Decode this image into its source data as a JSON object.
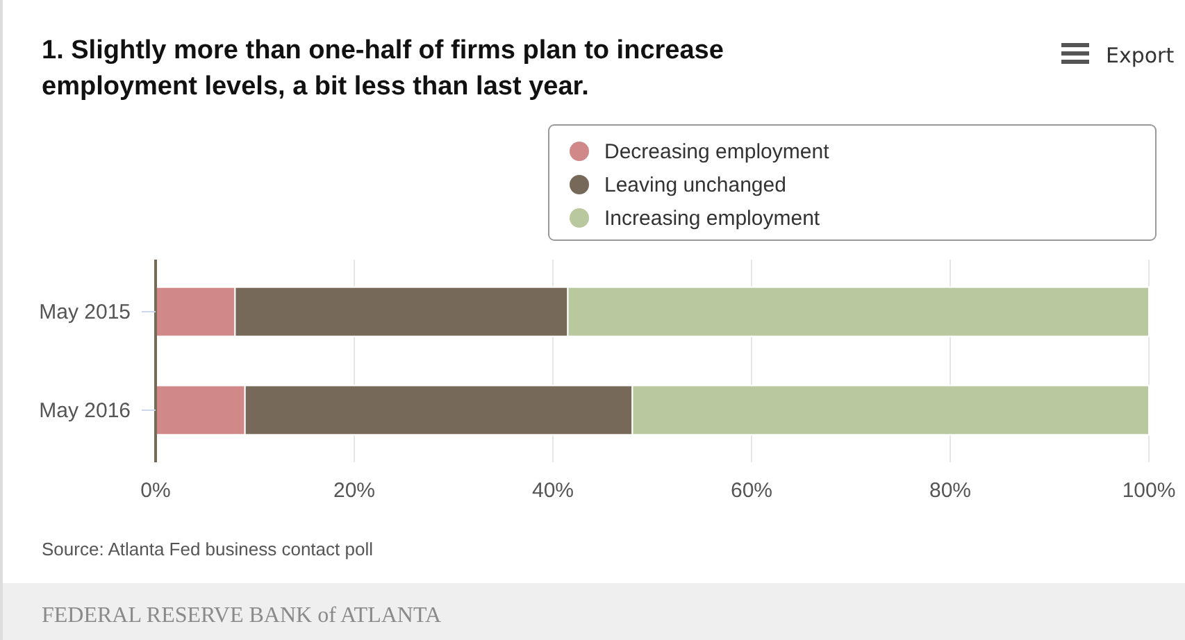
{
  "chart_data": {
    "type": "bar",
    "orientation": "horizontal",
    "stacked": true,
    "title": "1. Slightly more than one-half of firms plan to increase employment levels, a bit less than last year.",
    "categories": [
      "May 2015",
      "May 2016"
    ],
    "series": [
      {
        "name": "Decreasing employment",
        "color": "#d08888",
        "values": [
          8,
          9
        ]
      },
      {
        "name": "Leaving unchanged",
        "color": "#77695a",
        "values": [
          33.5,
          39
        ]
      },
      {
        "name": "Increasing employment",
        "color": "#bac89f",
        "values": [
          58.5,
          52
        ]
      }
    ],
    "xlim": [
      0,
      100
    ],
    "xticks": [
      {
        "value": 0,
        "label": "0%"
      },
      {
        "value": 20,
        "label": "20%"
      },
      {
        "value": 40,
        "label": "40%"
      },
      {
        "value": 60,
        "label": "60%"
      },
      {
        "value": 80,
        "label": "80%"
      },
      {
        "value": 100,
        "label": "100%"
      }
    ],
    "grid": "x",
    "legend": "top right",
    "annotations": [
      "Source: Atlanta Fed business contact poll",
      "FEDERAL RESERVE BANK of ATLANTA",
      "Export"
    ]
  }
}
